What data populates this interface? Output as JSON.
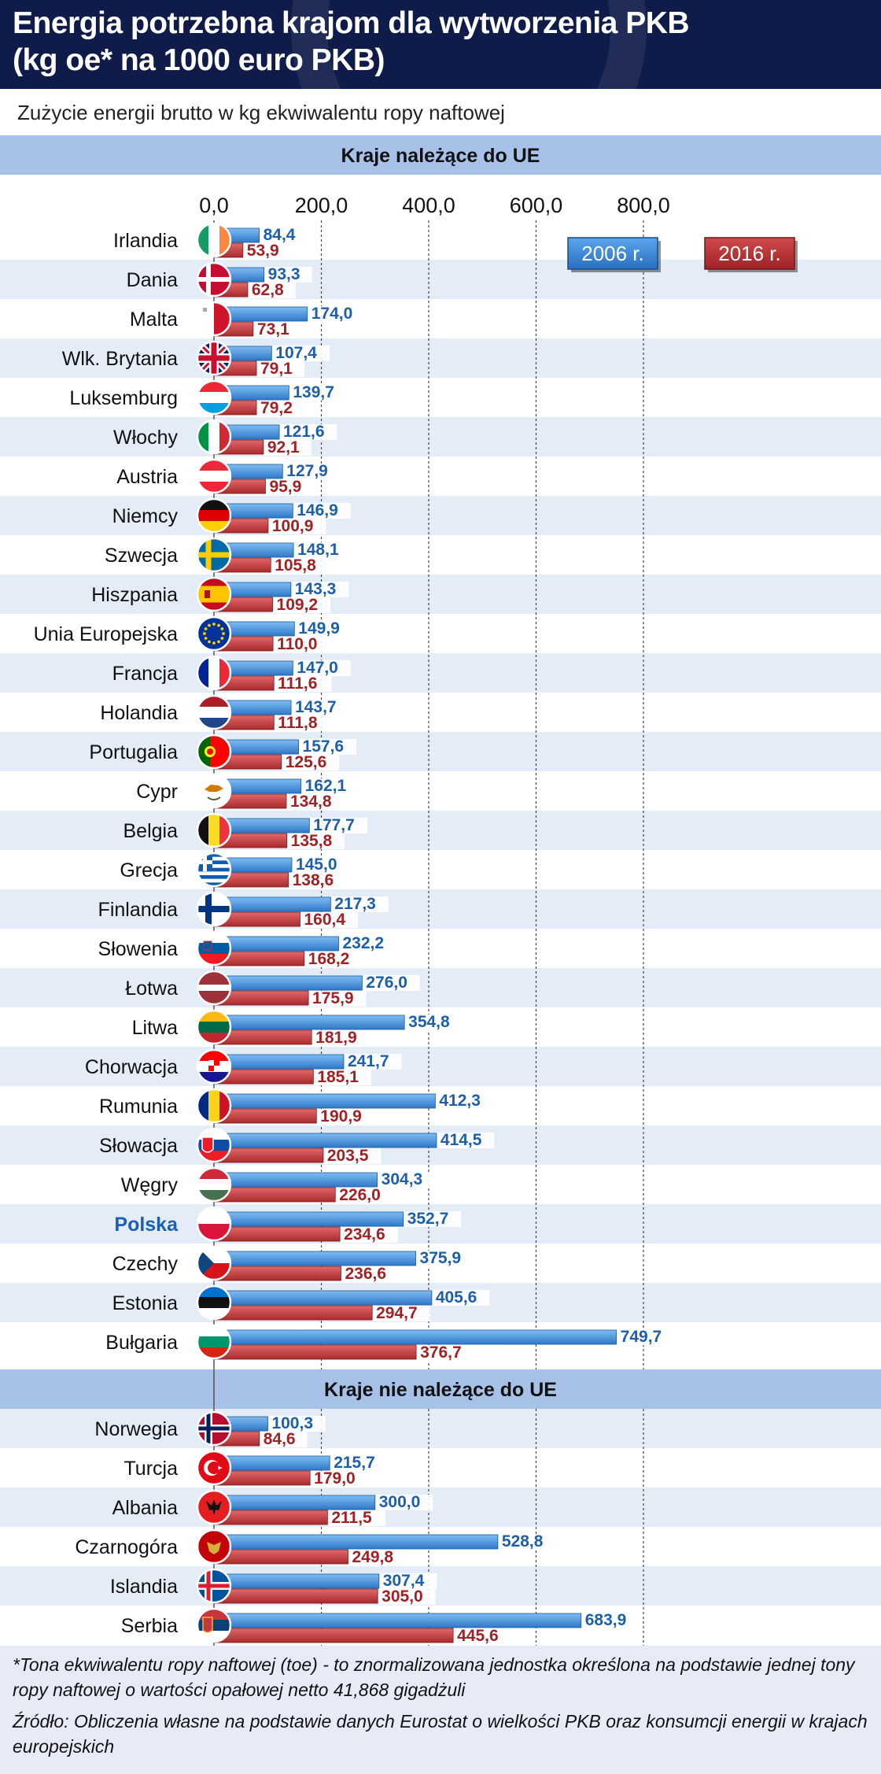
{
  "header": {
    "title": "Energia potrzebna krajom dla wytworzenia PKB\n(kg oe* na 1000 euro PKB)",
    "subtitle": "Zużycie energii brutto w kg ekwiwalentu ropy naftowej"
  },
  "colors": {
    "series_2006": "#3d8ee0",
    "series_2016": "#c0393b",
    "section_band": "#a7c1e8",
    "stripe": "#e4ecf8",
    "highlight_label": "#1a5fb4"
  },
  "chart_data": {
    "type": "bar",
    "orientation": "horizontal",
    "xlim": [
      0,
      800
    ],
    "x_ticks": [
      "0,0",
      "200,0",
      "400,0",
      "600,0",
      "800,0"
    ],
    "legend": {
      "placement": "top-right",
      "entries": [
        "2006 r.",
        "2016 r."
      ]
    },
    "series": [
      {
        "name": "2006 r."
      },
      {
        "name": "2016 r."
      }
    ],
    "groups": [
      {
        "title": "Kraje należące do UE",
        "items": [
          {
            "country": "Irlandia",
            "flag": "flag-ireland",
            "v2006": 84.4,
            "v2016": 53.9,
            "l2006": "84,4",
            "l2016": "53,9"
          },
          {
            "country": "Dania",
            "flag": "flag-denmark",
            "v2006": 93.3,
            "v2016": 62.8,
            "l2006": "93,3",
            "l2016": "62,8"
          },
          {
            "country": "Malta",
            "flag": "flag-malta",
            "v2006": 174.0,
            "v2016": 73.1,
            "l2006": "174,0",
            "l2016": "73,1"
          },
          {
            "country": "Wlk. Brytania",
            "flag": "flag-uk",
            "v2006": 107.4,
            "v2016": 79.1,
            "l2006": "107,4",
            "l2016": "79,1"
          },
          {
            "country": "Luksemburg",
            "flag": "flag-luxembourg",
            "v2006": 139.7,
            "v2016": 79.2,
            "l2006": "139,7",
            "l2016": "79,2"
          },
          {
            "country": "Włochy",
            "flag": "flag-italy",
            "v2006": 121.6,
            "v2016": 92.1,
            "l2006": "121,6",
            "l2016": "92,1"
          },
          {
            "country": "Austria",
            "flag": "flag-austria",
            "v2006": 127.9,
            "v2016": 95.9,
            "l2006": "127,9",
            "l2016": "95,9"
          },
          {
            "country": "Niemcy",
            "flag": "flag-germany",
            "v2006": 146.9,
            "v2016": 100.9,
            "l2006": "146,9",
            "l2016": "100,9"
          },
          {
            "country": "Szwecja",
            "flag": "flag-sweden",
            "v2006": 148.1,
            "v2016": 105.8,
            "l2006": "148,1",
            "l2016": "105,8"
          },
          {
            "country": "Hiszpania",
            "flag": "flag-spain",
            "v2006": 143.3,
            "v2016": 109.2,
            "l2006": "143,3",
            "l2016": "109,2"
          },
          {
            "country": "Unia Europejska",
            "flag": "flag-eu",
            "v2006": 149.9,
            "v2016": 110.0,
            "l2006": "149,9",
            "l2016": "110,0"
          },
          {
            "country": "Francja",
            "flag": "flag-france",
            "v2006": 147.0,
            "v2016": 111.6,
            "l2006": "147,0",
            "l2016": "111,6"
          },
          {
            "country": "Holandia",
            "flag": "flag-netherlands",
            "v2006": 143.7,
            "v2016": 111.8,
            "l2006": "143,7",
            "l2016": "111,8"
          },
          {
            "country": "Portugalia",
            "flag": "flag-portugal",
            "v2006": 157.6,
            "v2016": 125.6,
            "l2006": "157,6",
            "l2016": "125,6"
          },
          {
            "country": "Cypr",
            "flag": "flag-cyprus",
            "v2006": 162.1,
            "v2016": 134.8,
            "l2006": "162,1",
            "l2016": "134,8"
          },
          {
            "country": "Belgia",
            "flag": "flag-belgium",
            "v2006": 177.7,
            "v2016": 135.8,
            "l2006": "177,7",
            "l2016": "135,8"
          },
          {
            "country": "Grecja",
            "flag": "flag-greece",
            "v2006": 145.0,
            "v2016": 138.6,
            "l2006": "145,0",
            "l2016": "138,6"
          },
          {
            "country": "Finlandia",
            "flag": "flag-finland",
            "v2006": 217.3,
            "v2016": 160.4,
            "l2006": "217,3",
            "l2016": "160,4"
          },
          {
            "country": "Słowenia",
            "flag": "flag-slovenia",
            "v2006": 232.2,
            "v2016": 168.2,
            "l2006": "232,2",
            "l2016": "168,2"
          },
          {
            "country": "Łotwa",
            "flag": "flag-latvia",
            "v2006": 276.0,
            "v2016": 175.9,
            "l2006": "276,0",
            "l2016": "175,9"
          },
          {
            "country": "Litwa",
            "flag": "flag-lithuania",
            "v2006": 354.8,
            "v2016": 181.9,
            "l2006": "354,8",
            "l2016": "181,9"
          },
          {
            "country": "Chorwacja",
            "flag": "flag-croatia",
            "v2006": 241.7,
            "v2016": 185.1,
            "l2006": "241,7",
            "l2016": "185,1"
          },
          {
            "country": "Rumunia",
            "flag": "flag-romania",
            "v2006": 412.3,
            "v2016": 190.9,
            "l2006": "412,3",
            "l2016": "190,9"
          },
          {
            "country": "Słowacja",
            "flag": "flag-slovakia",
            "v2006": 414.5,
            "v2016": 203.5,
            "l2006": "414,5",
            "l2016": "203,5"
          },
          {
            "country": "Węgry",
            "flag": "flag-hungary",
            "v2006": 304.3,
            "v2016": 226.0,
            "l2006": "304,3",
            "l2016": "226,0"
          },
          {
            "country": "Polska",
            "flag": "flag-poland",
            "highlight": true,
            "v2006": 352.7,
            "v2016": 234.6,
            "l2006": "352,7",
            "l2016": "234,6"
          },
          {
            "country": "Czechy",
            "flag": "flag-czechia",
            "v2006": 375.9,
            "v2016": 236.6,
            "l2006": "375,9",
            "l2016": "236,6"
          },
          {
            "country": "Estonia",
            "flag": "flag-estonia",
            "v2006": 405.6,
            "v2016": 294.7,
            "l2006": "405,6",
            "l2016": "294,7"
          },
          {
            "country": "Bułgaria",
            "flag": "flag-bulgaria",
            "v2006": 749.7,
            "v2016": 376.7,
            "l2006": "749,7",
            "l2016": "376,7"
          }
        ]
      },
      {
        "title": "Kraje nie należące do UE",
        "items": [
          {
            "country": "Norwegia",
            "flag": "flag-norway",
            "v2006": 100.3,
            "v2016": 84.6,
            "l2006": "100,3",
            "l2016": "84,6"
          },
          {
            "country": "Turcja",
            "flag": "flag-turkey",
            "v2006": 215.7,
            "v2016": 179.0,
            "l2006": "215,7",
            "l2016": "179,0"
          },
          {
            "country": "Albania",
            "flag": "flag-albania",
            "v2006": 300.0,
            "v2016": 211.5,
            "l2006": "300,0",
            "l2016": "211,5"
          },
          {
            "country": "Czarnogóra",
            "flag": "flag-montenegro",
            "v2006": 528.8,
            "v2016": 249.8,
            "l2006": "528,8",
            "l2016": "249,8"
          },
          {
            "country": "Islandia",
            "flag": "flag-iceland",
            "v2006": 307.4,
            "v2016": 305.0,
            "l2006": "307,4",
            "l2016": "305,0"
          },
          {
            "country": "Serbia",
            "flag": "flag-serbia",
            "v2006": 683.9,
            "v2016": 445.6,
            "l2006": "683,9",
            "l2016": "445,6"
          }
        ]
      }
    ]
  },
  "footer": {
    "note": "*Tona ekwiwalentu ropy naftowej (toe) - to znormalizowana jednostka określona na podstawie jednej tony ropy naftowej o wartości opałowej netto 41,868 gigadżuli",
    "source": "Źródło: Obliczenia własne na podstawie danych Eurostat o wielkości PKB oraz konsumcji energii w krajach europejskich"
  }
}
